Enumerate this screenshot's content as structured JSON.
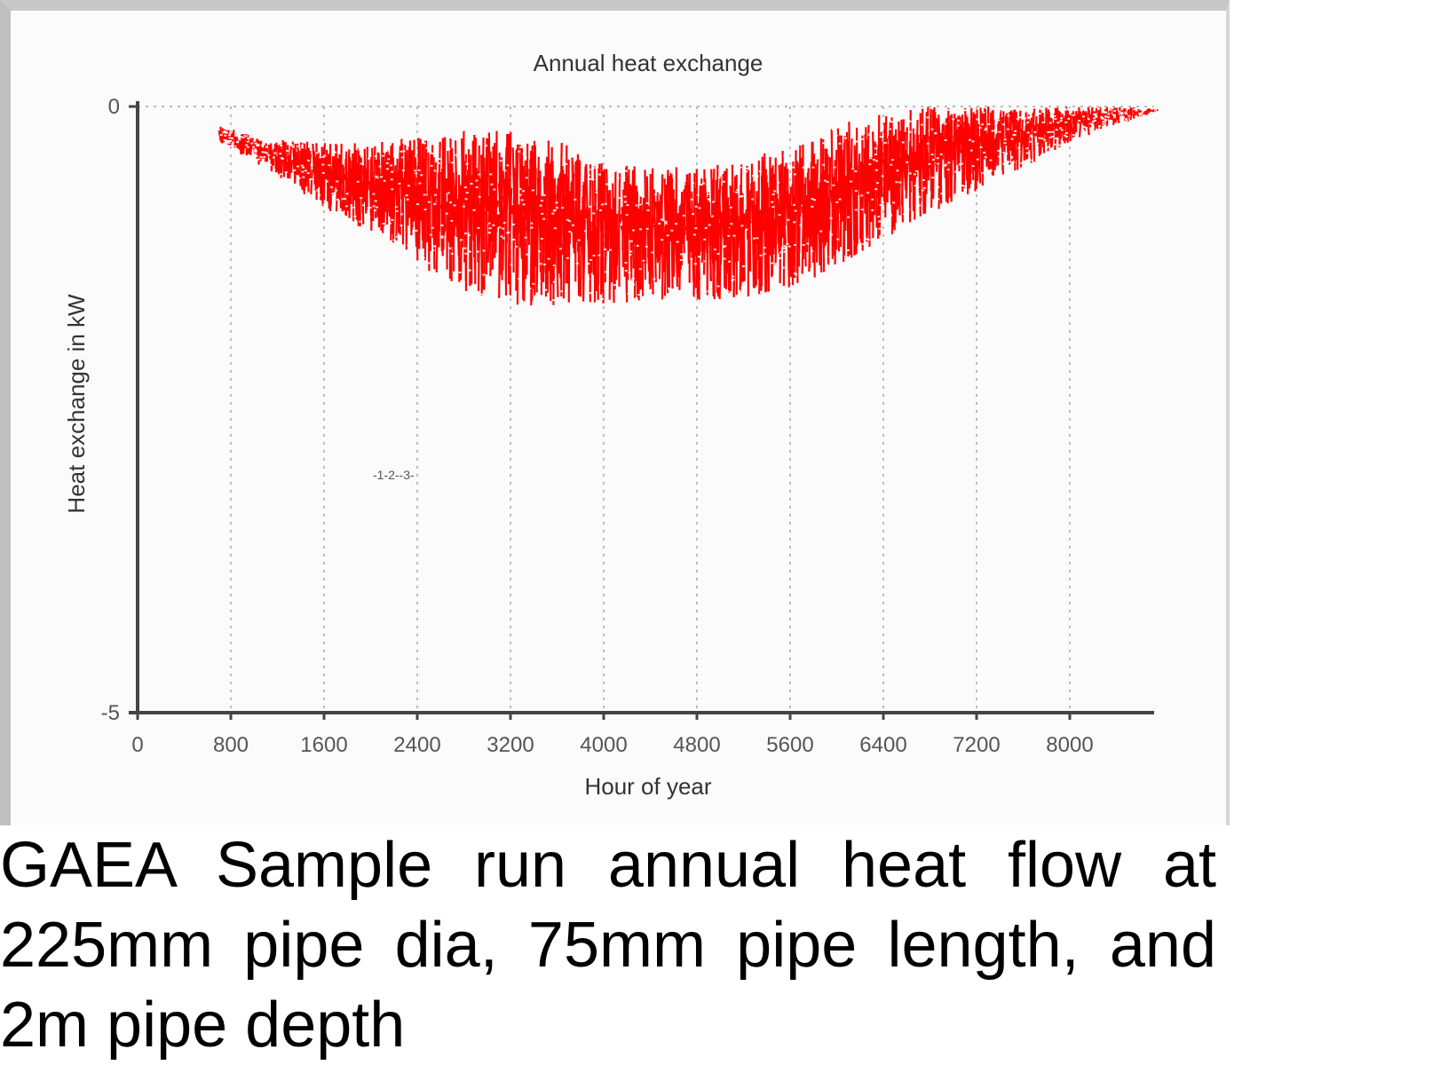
{
  "chart_data": {
    "type": "scatter",
    "title": "Annual heat exchange",
    "xlabel": "Hour of year",
    "ylabel": "Heat exchange in kW",
    "xlim": [
      0,
      8760
    ],
    "ylim": [
      -5,
      0
    ],
    "xticks": [
      "0",
      "800",
      "1600",
      "2400",
      "3200",
      "4000",
      "4800",
      "5600",
      "6400",
      "7200",
      "8000"
    ],
    "yticks": [
      "0",
      "-5"
    ],
    "grid": "vertical dotted",
    "series": [
      {
        "color": "#ff0000",
        "envelope": {
          "x": [
            700,
            1000,
            1600,
            2000,
            2400,
            2800,
            3200,
            3600,
            4000,
            4400,
            4800,
            5200,
            5600,
            6000,
            6400,
            6800,
            7200,
            7600,
            8000,
            8400,
            8760
          ],
          "y_top": [
            -0.15,
            -0.25,
            -0.3,
            -0.3,
            -0.25,
            -0.2,
            -0.2,
            -0.28,
            -0.45,
            -0.5,
            -0.5,
            -0.45,
            -0.3,
            -0.15,
            -0.05,
            0,
            0,
            0,
            0,
            0,
            -0.02
          ],
          "y_bottom": [
            -0.3,
            -0.45,
            -0.85,
            -1.05,
            -1.3,
            -1.55,
            -1.65,
            -1.65,
            -1.65,
            -1.6,
            -1.6,
            -1.6,
            -1.5,
            -1.35,
            -1.1,
            -0.9,
            -0.7,
            -0.5,
            -0.3,
            -0.15,
            -0.05
          ]
        }
      }
    ],
    "annotation": "-1-2--3-"
  },
  "caption": {
    "text": "GAEA Sample run annual heat flow at 225mm pipe dia, 75mm pipe length, and 2m pipe depth"
  },
  "colors": {
    "data": "#ff0000",
    "axis": "#444444",
    "grid": "#bbbbbb"
  }
}
